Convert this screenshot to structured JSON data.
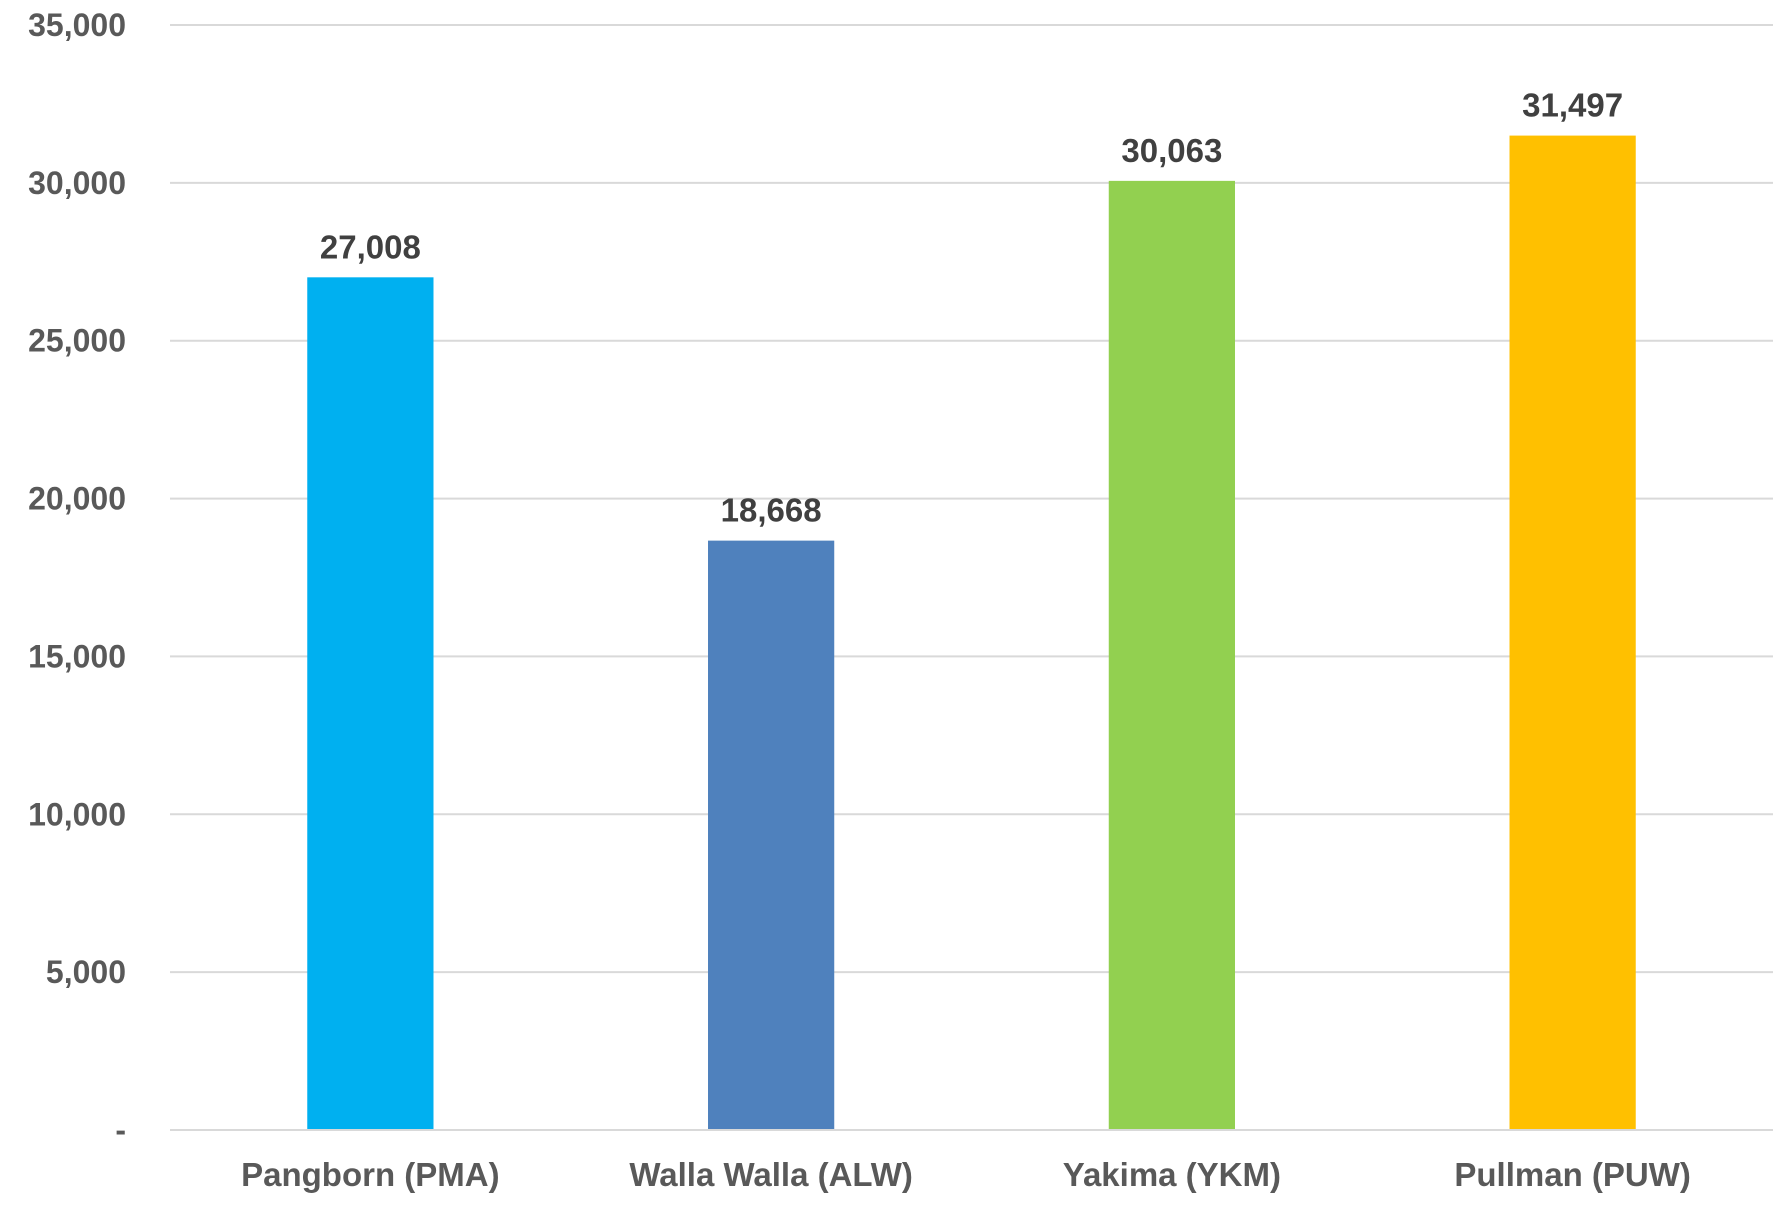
{
  "chart_data": {
    "type": "bar",
    "categories": [
      "Pangborn (PMA)",
      "Walla Walla (ALW)",
      "Yakima (YKM)",
      "Pullman (PUW)"
    ],
    "values": [
      27008,
      18668,
      30063,
      31497
    ],
    "data_labels": [
      "27,008",
      "18,668",
      "30,063",
      "31,497"
    ],
    "bar_colors": [
      "#00B0F0",
      "#4F81BD",
      "#92D050",
      "#FFC000"
    ],
    "title": "",
    "xlabel": "",
    "ylabel": "",
    "ylim": [
      0,
      35000
    ],
    "y_ticks": [
      0,
      5000,
      10000,
      15000,
      20000,
      25000,
      30000,
      35000
    ],
    "y_tick_labels": [
      "-",
      "5,000",
      "10,000",
      "15,000",
      "20,000",
      "25,000",
      "30,000",
      "35,000"
    ],
    "grid": true,
    "legend": "none",
    "colors": {
      "gridline": "#D9D9D9",
      "axis_line": "#D9D9D9",
      "text": "#595959",
      "data_label_text": "#404040"
    }
  }
}
